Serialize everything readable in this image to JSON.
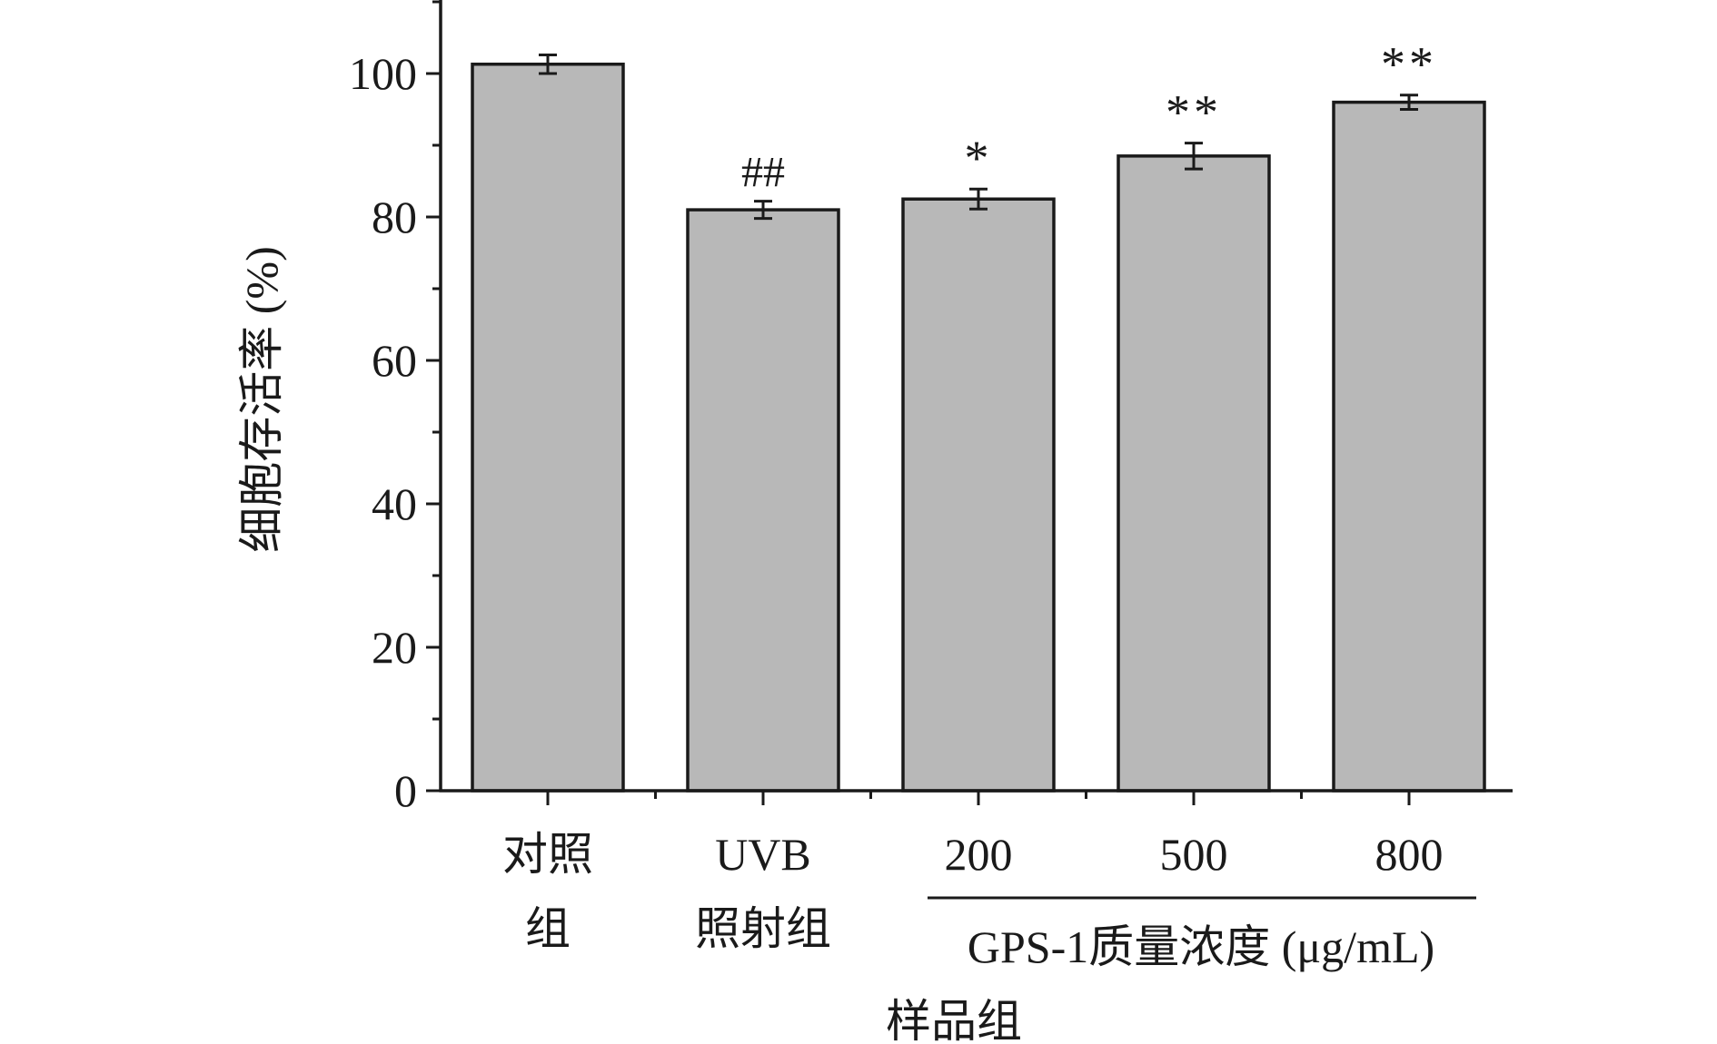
{
  "chart_data": {
    "type": "bar",
    "title": "",
    "ylabel": "细胞存活率 (%)",
    "xlabel": "GPS-1质量浓度 (μg/mL)",
    "group_label": "样品组",
    "ylim": [
      0,
      110
    ],
    "yticks": [
      "0",
      "20",
      "40",
      "60",
      "80",
      "100"
    ],
    "grid": false,
    "categories": [
      {
        "lines": [
          "对照",
          "组"
        ]
      },
      {
        "lines": [
          "UVB",
          "照射组"
        ]
      },
      {
        "lines": [
          "200"
        ]
      },
      {
        "lines": [
          "500"
        ]
      },
      {
        "lines": [
          "800"
        ]
      }
    ],
    "values": [
      101.3,
      81.0,
      82.5,
      88.5,
      96.0
    ],
    "errors": [
      1.3,
      1.2,
      1.4,
      1.8,
      1.0
    ],
    "annotations": [
      "",
      "##",
      "*",
      "**",
      "**"
    ],
    "bar_color": "#b8b8b8",
    "edge_color": "#1a1a1a"
  }
}
